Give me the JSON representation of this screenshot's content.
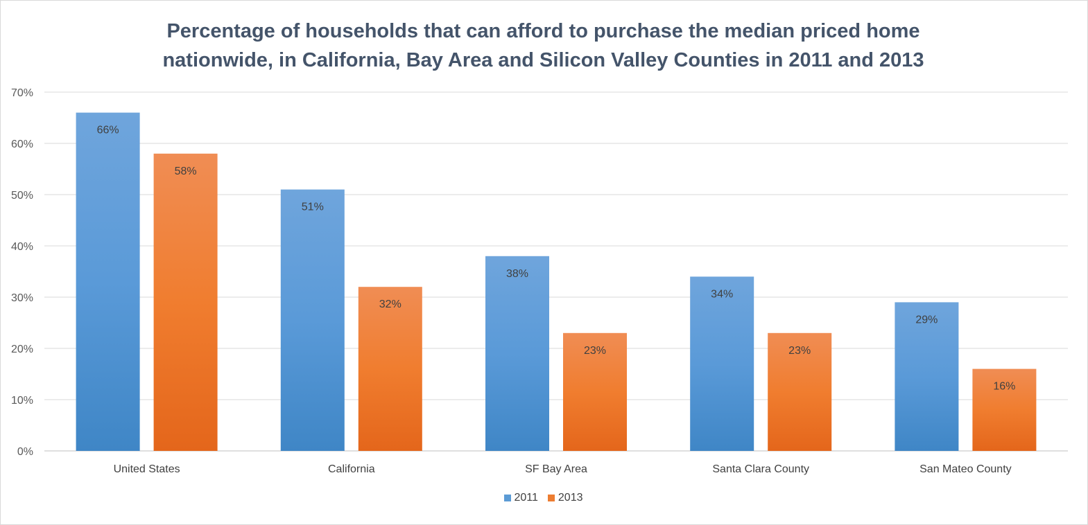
{
  "chart_data": {
    "type": "bar",
    "title_lines": [
      "Percentage of households that can afford to purchase the median priced home",
      "nationwide, in California, Bay Area and Silicon Valley Counties in 2011 and 2013"
    ],
    "categories": [
      "United States",
      "California",
      "SF Bay Area",
      "Santa Clara County",
      "San Mateo County"
    ],
    "series": [
      {
        "name": "2011",
        "values": [
          66,
          51,
          38,
          34,
          29
        ],
        "labels": [
          "66%",
          "51%",
          "38%",
          "34%",
          "29%"
        ],
        "color": "#5b9bd5"
      },
      {
        "name": "2013",
        "values": [
          58,
          32,
          23,
          23,
          16
        ],
        "labels": [
          "58%",
          "32%",
          "23%",
          "23%",
          "16%"
        ],
        "color": "#ed7d31"
      }
    ],
    "ylim": [
      0,
      70
    ],
    "yticks": [
      0,
      10,
      20,
      30,
      40,
      50,
      60,
      70
    ],
    "ytick_labels": [
      "0%",
      "10%",
      "20%",
      "30%",
      "40%",
      "50%",
      "60%",
      "70%"
    ],
    "xlabel": "",
    "ylabel": "",
    "grid": true,
    "legend_position": "bottom"
  }
}
